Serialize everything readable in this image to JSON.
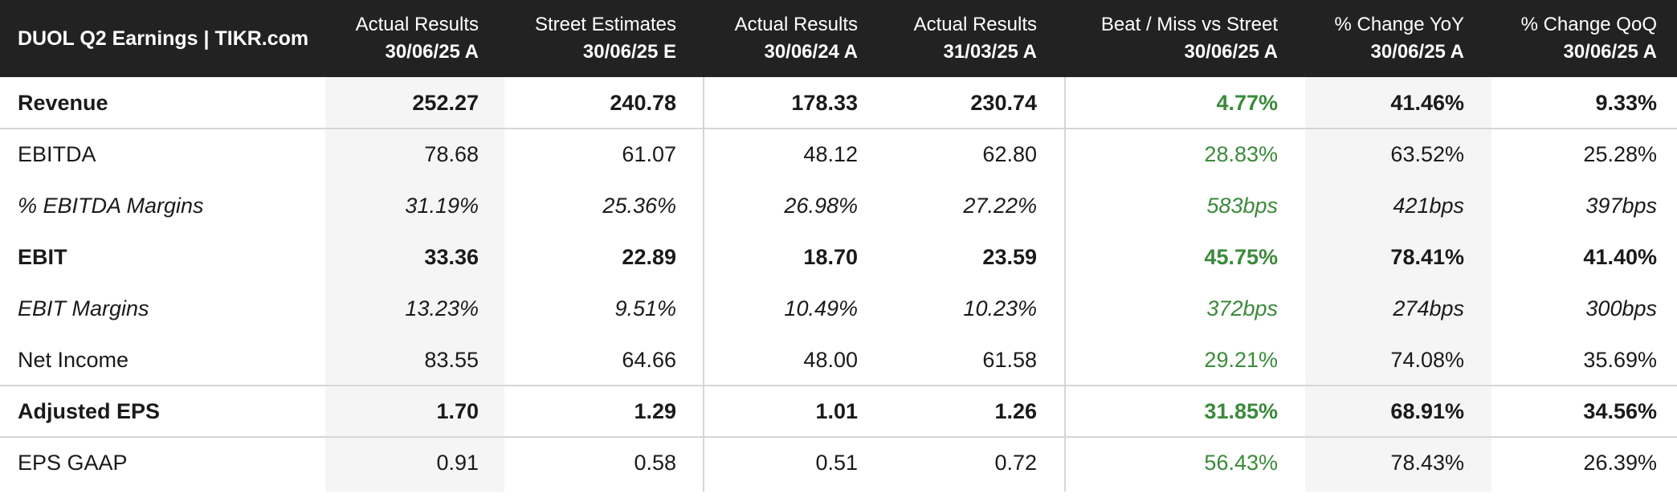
{
  "title": "DUOL Q2 Earnings | TIKR.com",
  "colors": {
    "header_bg": "#222222",
    "positive": "#3b8a3b",
    "shaded_col": "#f5f5f5"
  },
  "chart_data": {
    "type": "table",
    "columns": [
      {
        "line1": "Actual Results",
        "line2": "30/06/25 A"
      },
      {
        "line1": "Street Estimates",
        "line2": "30/06/25 E"
      },
      {
        "line1": "Actual Results",
        "line2": "30/06/24 A"
      },
      {
        "line1": "Actual Results",
        "line2": "31/03/25 A"
      },
      {
        "line1": "Beat / Miss vs Street",
        "line2": "30/06/25 A"
      },
      {
        "line1": "% Change YoY",
        "line2": "30/06/25 A"
      },
      {
        "line1": "% Change QoQ",
        "line2": "30/06/25 A"
      }
    ],
    "rows": [
      {
        "label": "Revenue",
        "values": [
          "252.27",
          "240.78",
          "178.33",
          "230.74",
          "4.77%",
          "41.46%",
          "9.33%"
        ]
      },
      {
        "label": "EBITDA",
        "values": [
          "78.68",
          "61.07",
          "48.12",
          "62.80",
          "28.83%",
          "63.52%",
          "25.28%"
        ]
      },
      {
        "label": "% EBITDA Margins",
        "values": [
          "31.19%",
          "25.36%",
          "26.98%",
          "27.22%",
          "583bps",
          "421bps",
          "397bps"
        ]
      },
      {
        "label": "EBIT",
        "values": [
          "33.36",
          "22.89",
          "18.70",
          "23.59",
          "45.75%",
          "78.41%",
          "41.40%"
        ]
      },
      {
        "label": "EBIT Margins",
        "values": [
          "13.23%",
          "9.51%",
          "10.49%",
          "10.23%",
          "372bps",
          "274bps",
          "300bps"
        ]
      },
      {
        "label": "Net Income",
        "values": [
          "83.55",
          "64.66",
          "48.00",
          "61.58",
          "29.21%",
          "74.08%",
          "35.69%"
        ]
      },
      {
        "label": "Adjusted EPS",
        "values": [
          "1.70",
          "1.29",
          "1.01",
          "1.26",
          "31.85%",
          "68.91%",
          "34.56%"
        ]
      },
      {
        "label": "EPS GAAP",
        "values": [
          "0.91",
          "0.58",
          "0.51",
          "0.72",
          "56.43%",
          "78.43%",
          "26.39%"
        ]
      }
    ]
  }
}
